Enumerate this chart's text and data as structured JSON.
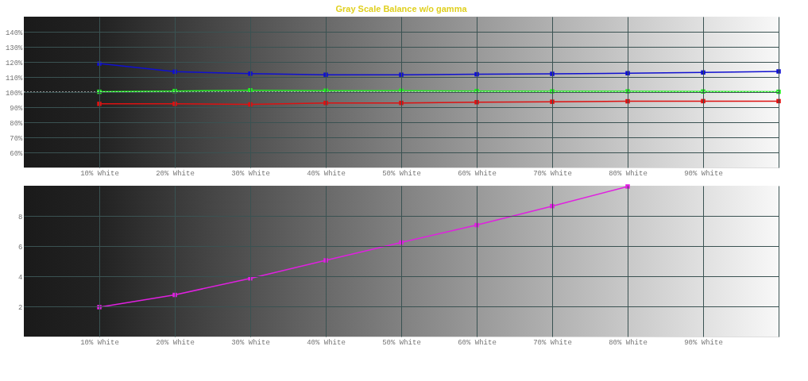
{
  "chart_data": [
    {
      "type": "line",
      "title": "Gray Scale Balance w/o gamma",
      "x": [
        10,
        20,
        30,
        40,
        50,
        60,
        70,
        80,
        90,
        100
      ],
      "xlim": [
        0,
        100
      ],
      "xticks": [
        {
          "value": 10,
          "label": "10% White"
        },
        {
          "value": 20,
          "label": "20% White"
        },
        {
          "value": 30,
          "label": "30% White"
        },
        {
          "value": 40,
          "label": "40% White"
        },
        {
          "value": 50,
          "label": "50% White"
        },
        {
          "value": 60,
          "label": "60% White"
        },
        {
          "value": 70,
          "label": "70% White"
        },
        {
          "value": 80,
          "label": "80% White"
        },
        {
          "value": 90,
          "label": "90% White"
        },
        {
          "value": 100,
          "label": null
        }
      ],
      "ylim": [
        50,
        150
      ],
      "yticks": [
        {
          "value": 60,
          "label": "60%"
        },
        {
          "value": 70,
          "label": "70%"
        },
        {
          "value": 80,
          "label": "80%"
        },
        {
          "value": 90,
          "label": "90%"
        },
        {
          "value": 100,
          "label": "100%"
        },
        {
          "value": 110,
          "label": "110%"
        },
        {
          "value": 120,
          "label": "120%"
        },
        {
          "value": 130,
          "label": "130%"
        },
        {
          "value": 140,
          "label": "140%"
        }
      ],
      "series": [
        {
          "color": "#dd1111",
          "values": [
            92.2,
            92.2,
            91.8,
            92.8,
            92.8,
            93.3,
            93.6,
            93.9,
            94.0,
            94.0
          ]
        },
        {
          "color": "#22ee22",
          "values": [
            100.2,
            100.7,
            101.2,
            100.9,
            100.9,
            100.7,
            100.5,
            100.5,
            100.4,
            100.2
          ]
        },
        {
          "color": "#1010d0",
          "values": [
            118.9,
            113.5,
            112.2,
            111.5,
            111.5,
            111.8,
            112.1,
            112.5,
            113.0,
            113.7
          ]
        }
      ],
      "ref_lines": [
        {
          "axis": "y",
          "value": 100,
          "label": null,
          "color": "#ffffff",
          "line_style": "dotted"
        }
      ],
      "grid": true,
      "marker": "square",
      "line_style": "solid"
    },
    {
      "type": "line",
      "x": [
        10,
        20,
        30,
        40,
        50,
        60,
        70,
        80
      ],
      "xlim": [
        0,
        100
      ],
      "xticks": [
        {
          "value": 10,
          "label": "10% White"
        },
        {
          "value": 20,
          "label": "20% White"
        },
        {
          "value": 30,
          "label": "30% White"
        },
        {
          "value": 40,
          "label": "40% White"
        },
        {
          "value": 50,
          "label": "50% White"
        },
        {
          "value": 60,
          "label": "60% White"
        },
        {
          "value": 70,
          "label": "70% White"
        },
        {
          "value": 80,
          "label": "80% White"
        },
        {
          "value": 90,
          "label": "90% White"
        },
        {
          "value": 100,
          "label": null
        }
      ],
      "ylim": [
        0,
        10
      ],
      "yticks": [
        2,
        4,
        6,
        8
      ],
      "series": [
        {
          "color": "#e020e0",
          "values": [
            1.95,
            2.76,
            3.86,
            5.05,
            6.24,
            7.39,
            8.65,
            9.95
          ]
        }
      ],
      "grid": true,
      "marker": "square",
      "line_style": "solid"
    }
  ]
}
